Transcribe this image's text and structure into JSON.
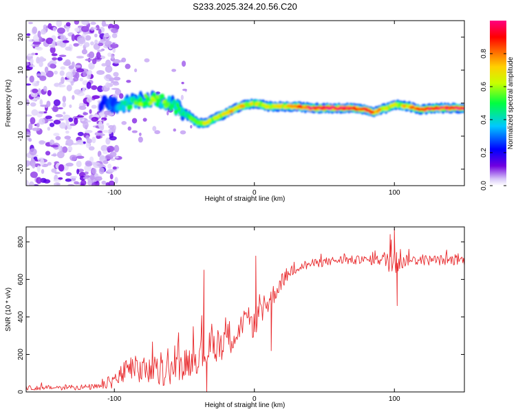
{
  "title": "S233.2025.324.20.56.C20",
  "colors": {
    "snr_line": "#e8282b",
    "spectro_low": "#6a00ff",
    "spectro_high": "#ff0044"
  },
  "chart_data": [
    {
      "type": "heatmap",
      "title": "S233.2025.324.20.56.C20",
      "xlabel": "Height of straight line (km)",
      "ylabel": "Frequency (Hz)",
      "xlim": [
        -163,
        150
      ],
      "ylim": [
        -25,
        25
      ],
      "x_ticks": [
        "-100",
        "0",
        "100"
      ],
      "x_tick_values": [
        -100,
        0,
        100
      ],
      "y_ticks": [
        "-20",
        "-10",
        "0",
        "10",
        "20"
      ],
      "y_tick_values": [
        -20,
        -10,
        0,
        10,
        20
      ],
      "colorbar": {
        "label": "Normalized spectral amplitude",
        "range": [
          0,
          1
        ],
        "ticks": [
          "0.0",
          "0.2",
          "0.4",
          "0.6",
          "0.8"
        ],
        "tick_values": [
          0.0,
          0.2,
          0.4,
          0.6,
          0.8
        ],
        "colormap": "rainbow (purple-blue-cyan-green-yellow-red-magenta)"
      },
      "ridge": {
        "x": [
          -110,
          -100,
          -90,
          -80,
          -70,
          -60,
          -50,
          -40,
          -35,
          -30,
          -20,
          -10,
          0,
          10,
          20,
          30,
          40,
          50,
          60,
          70,
          80,
          85,
          90,
          95,
          100,
          110,
          120,
          130,
          140,
          150
        ],
        "freq": [
          0,
          -0.5,
          0,
          1,
          1,
          0,
          -3,
          -6,
          -6,
          -5,
          -3,
          -1,
          0,
          -1,
          -1,
          -1,
          -1.5,
          -1.5,
          -1.5,
          -1.5,
          -2,
          -3,
          -2,
          -1.5,
          -0.5,
          -1,
          -2,
          -1.5,
          -1.5,
          -1.5
        ],
        "amplitude": [
          0.2,
          0.3,
          0.45,
          0.55,
          0.55,
          0.5,
          0.45,
          0.6,
          0.7,
          0.6,
          0.7,
          0.7,
          0.6,
          0.6,
          0.65,
          0.8,
          0.95,
          0.95,
          0.95,
          0.9,
          0.85,
          0.8,
          0.7,
          0.65,
          0.6,
          0.7,
          0.85,
          0.9,
          0.95,
          0.95
        ]
      },
      "noise_region_x": [
        -163,
        -105
      ]
    },
    {
      "type": "line",
      "xlabel": "Height of straight line (km)",
      "ylabel": "SNR (10 * v/v)",
      "xlim": [
        -163,
        150
      ],
      "ylim": [
        0,
        880
      ],
      "x_ticks": [
        "-100",
        "0",
        "100"
      ],
      "x_tick_values": [
        -100,
        0,
        100
      ],
      "y_ticks": [
        "0",
        "200",
        "400",
        "600",
        "800"
      ],
      "y_tick_values": [
        0,
        200,
        400,
        600,
        800
      ],
      "series": [
        {
          "trend_x": [
            -163,
            -110,
            -100,
            -90,
            -80,
            -70,
            -60,
            -50,
            -40,
            -30,
            -20,
            -10,
            0,
            5,
            10,
            20,
            30,
            40,
            50,
            60,
            70,
            80,
            90,
            100,
            110,
            120,
            130,
            140,
            150
          ],
          "trend_y": [
            20,
            25,
            60,
            110,
            110,
            90,
            110,
            140,
            180,
            230,
            270,
            330,
            370,
            420,
            470,
            590,
            660,
            680,
            690,
            700,
            700,
            700,
            700,
            700,
            700,
            700,
            700,
            700,
            700
          ],
          "noise_amp": [
            15,
            20,
            60,
            90,
            100,
            90,
            100,
            100,
            110,
            120,
            120,
            110,
            110,
            90,
            80,
            50,
            40,
            30,
            30,
            30,
            30,
            30,
            35,
            120,
            35,
            35,
            35,
            35,
            35
          ],
          "spikes": [
            {
              "x": -36,
              "y": 650
            },
            {
              "x": -34,
              "y": 0
            },
            {
              "x": 1,
              "y": 725
            },
            {
              "x": 12,
              "y": 220
            },
            {
              "x": 97,
              "y": 840
            },
            {
              "x": 100,
              "y": 870
            },
            {
              "x": 102,
              "y": 460
            }
          ]
        }
      ]
    }
  ]
}
